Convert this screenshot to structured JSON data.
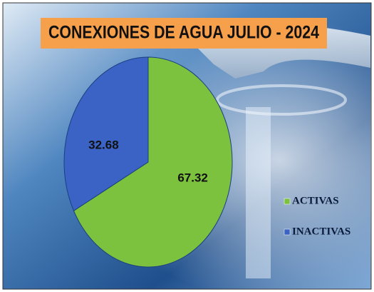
{
  "chart_data": {
    "type": "pie",
    "title": "CONEXIONES DE AGUA JULIO - 2024",
    "categories": [
      "ACTIVAS",
      "INACTIVAS"
    ],
    "values": [
      67.32,
      32.68
    ],
    "colors": [
      "#7cc23e",
      "#3b63c6"
    ],
    "legend": "right"
  }
}
